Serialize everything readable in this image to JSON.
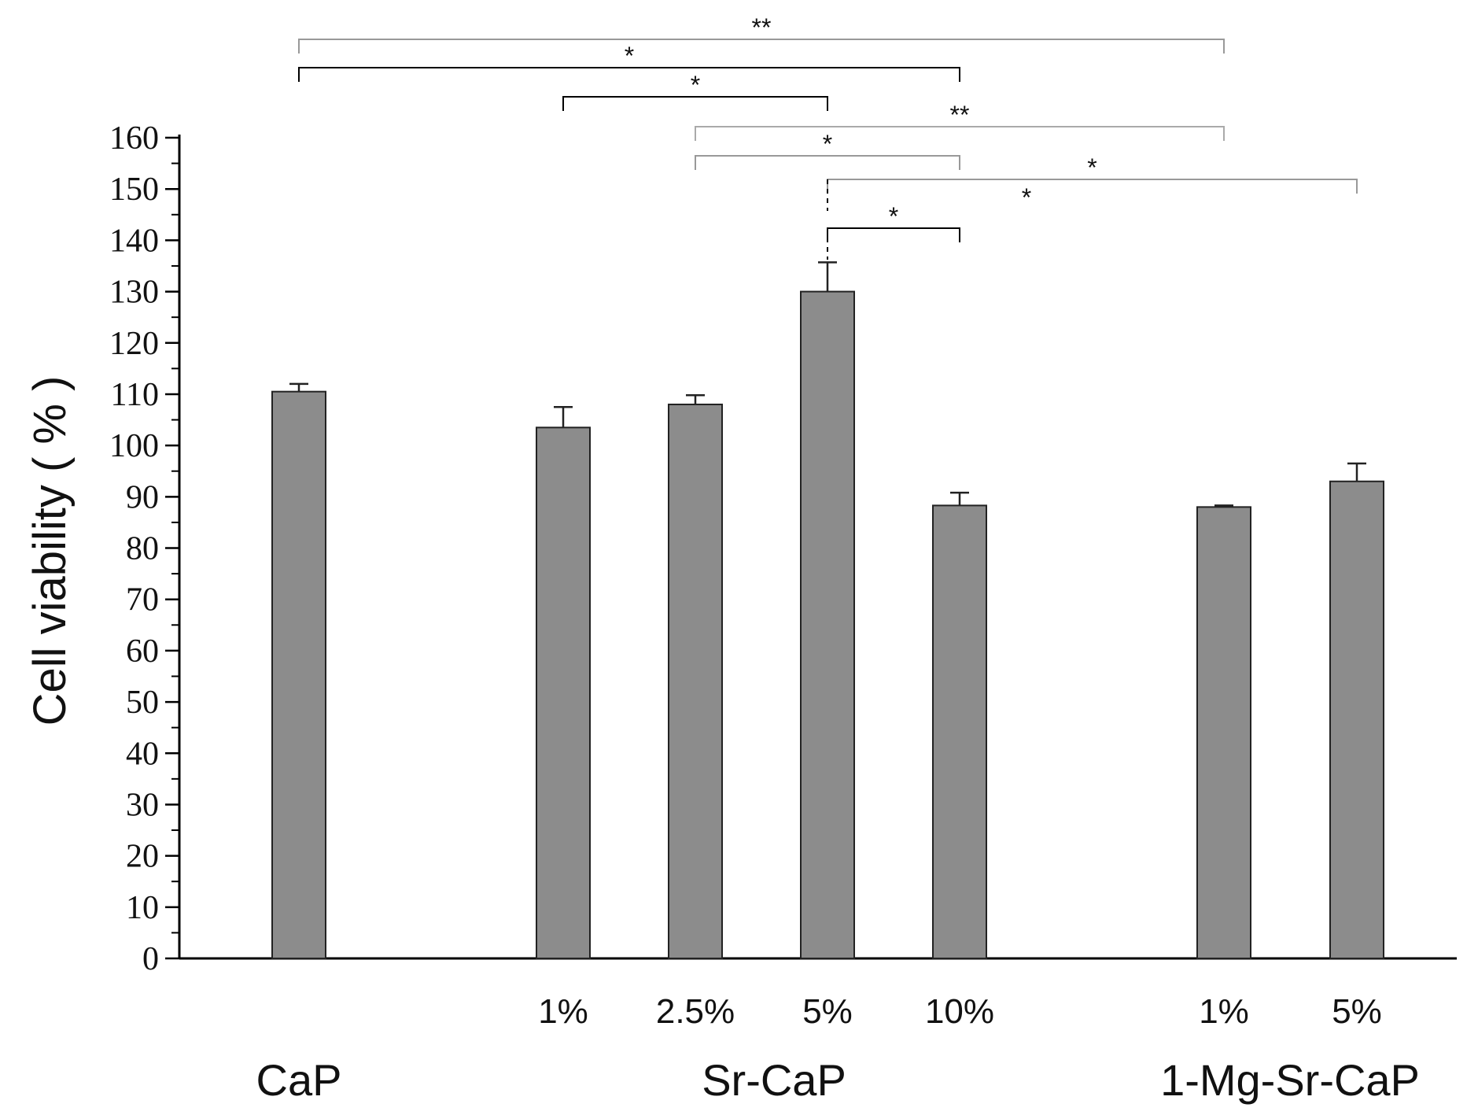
{
  "chart_data": {
    "type": "bar",
    "title": "",
    "xlabel": "",
    "ylabel": "Cell viability ( % )",
    "ylim": [
      0,
      160
    ],
    "ytick_step": 10,
    "bar_color": "#8c8c8c",
    "bars": [
      {
        "id": "CaP",
        "group": "CaP",
        "label": "",
        "value": 110.5,
        "error": 1.5
      },
      {
        "id": "Sr1",
        "group": "Sr-CaP",
        "label": "1%",
        "value": 103.5,
        "error": 4.0
      },
      {
        "id": "Sr2.5",
        "group": "Sr-CaP",
        "label": "2.5%",
        "value": 108,
        "error": 1.8
      },
      {
        "id": "Sr5",
        "group": "Sr-CaP",
        "label": "5%",
        "value": 130,
        "error": 5.7
      },
      {
        "id": "Sr10",
        "group": "Sr-CaP",
        "label": "10%",
        "value": 88.3,
        "error": 2.5
      },
      {
        "id": "Mg1",
        "group": "1-Mg-Sr-CaP",
        "label": "1%",
        "value": 88,
        "error": 0.3
      },
      {
        "id": "Mg5",
        "group": "1-Mg-Sr-CaP",
        "label": "5%",
        "value": 93,
        "error": 3.5
      }
    ],
    "groups": [
      "CaP",
      "Sr-CaP",
      "1-Mg-Sr-CaP"
    ],
    "significance": [
      {
        "from": "CaP",
        "to": "Mg1",
        "label": "**",
        "color": "#999999"
      },
      {
        "from": "CaP",
        "to": "Sr10",
        "label": "*",
        "color": "#000000"
      },
      {
        "from": "Sr1",
        "to": "Sr5",
        "label": "*",
        "color": "#000000"
      },
      {
        "from": "Sr2.5",
        "to": "Mg1",
        "label": "**",
        "color": "#aaaaaa"
      },
      {
        "from": "Sr2.5",
        "to": "Sr10",
        "label": "*",
        "color": "#999999"
      },
      {
        "from": "Sr5",
        "to": "Mg5",
        "label": "*",
        "color": "#999999"
      },
      {
        "from": "Sr5",
        "to": "Sr10",
        "label": "*",
        "color": "#000000"
      }
    ],
    "extra_marks": [
      "*"
    ]
  }
}
